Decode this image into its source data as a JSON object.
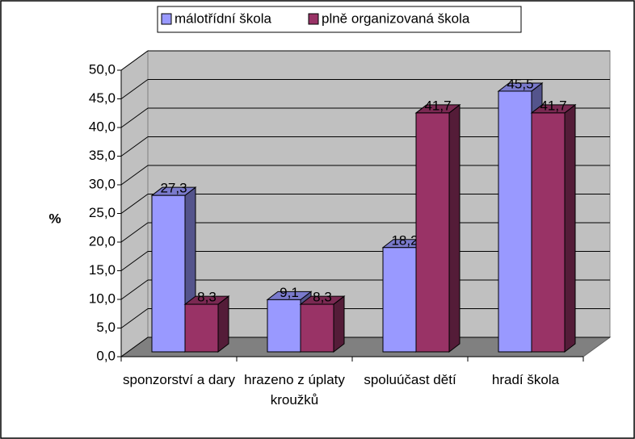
{
  "chart_data": {
    "type": "bar3d",
    "ylabel": "%",
    "categories": [
      "sponzorství a dary",
      "hrazeno z úplaty kroužků",
      "spoluúčast dětí",
      "hradí škola"
    ],
    "series": [
      {
        "name": "málotřídní škola",
        "color": "#9999ff",
        "values": [
          27.3,
          9.1,
          18.2,
          45.5
        ],
        "value_labels": [
          "27,3",
          "9,1",
          "18,2",
          "45,5"
        ]
      },
      {
        "name": "plně organizovaná škola",
        "color": "#993366",
        "values": [
          8.3,
          8.3,
          41.7,
          41.7
        ],
        "value_labels": [
          "8,3",
          "8,3",
          "41,7",
          "41,7"
        ]
      }
    ],
    "ylim": [
      0,
      50
    ],
    "yticks": [
      {
        "value": 0,
        "label": "0,0"
      },
      {
        "value": 5,
        "label": "5,0"
      },
      {
        "value": 10,
        "label": "10,0"
      },
      {
        "value": 15,
        "label": "15,0"
      },
      {
        "value": 20,
        "label": "20,0"
      },
      {
        "value": 25,
        "label": "25,0"
      },
      {
        "value": 30,
        "label": "30,0"
      },
      {
        "value": 35,
        "label": "35,0"
      },
      {
        "value": 40,
        "label": "40,0"
      },
      {
        "value": 45,
        "label": "45,0"
      },
      {
        "value": 50,
        "label": "50,0"
      }
    ],
    "grid": true,
    "legend": "top"
  }
}
